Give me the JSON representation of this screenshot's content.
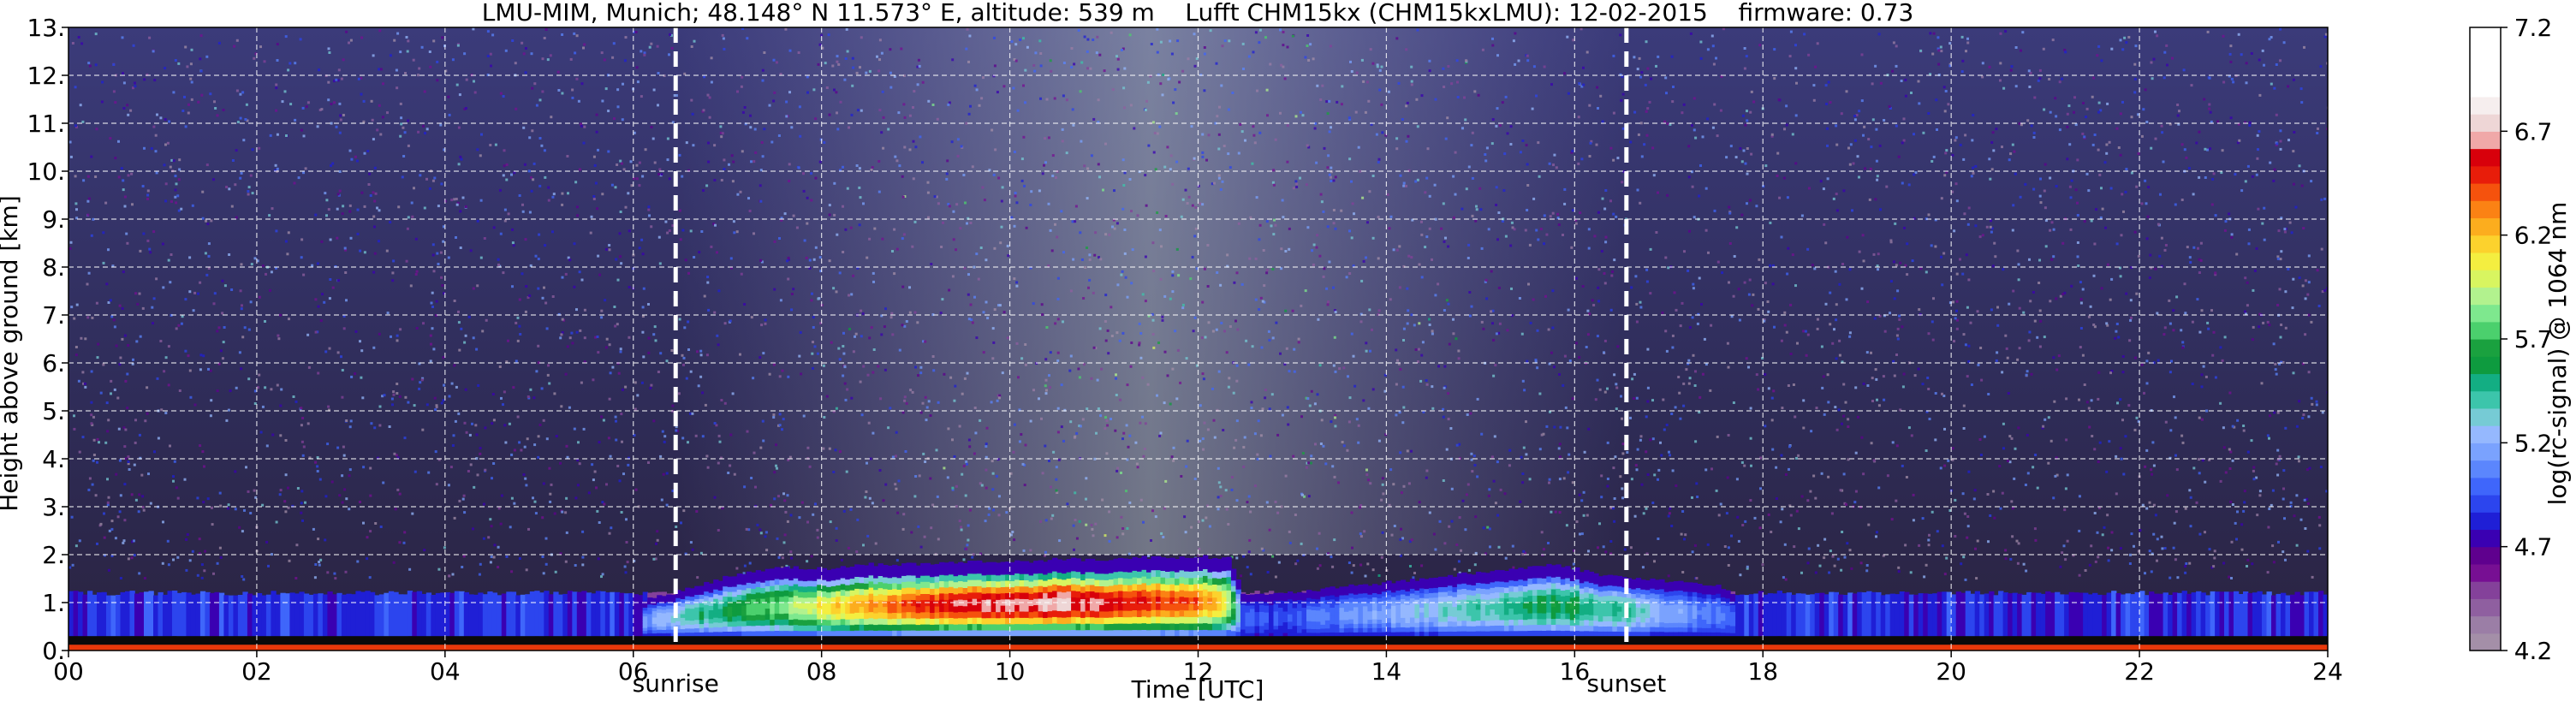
{
  "chart_data": {
    "type": "heatmap",
    "title": "LMU-MIM, Munich; 48.148° N 11.573° E, altitude: 539 m    Lufft CHM15kx (CHM15kxLMU): 12-02-2015    firmware: 0.73",
    "xlabel": "Time [UTC]",
    "ylabel": "Height above ground [km]",
    "xlim": [
      0,
      24
    ],
    "ylim": [
      0,
      13
    ],
    "x_ticks": [
      "00",
      "02",
      "04",
      "06",
      "08",
      "10",
      "12",
      "14",
      "16",
      "18",
      "20",
      "22",
      "24"
    ],
    "y_ticks": [
      "0.",
      "1.",
      "2.",
      "3.",
      "4.",
      "5.",
      "6.",
      "7.",
      "8.",
      "9.",
      "10.",
      "11.",
      "12.",
      "13."
    ],
    "grid": true,
    "annotations": [
      {
        "label": "sunrise",
        "x": 6.45
      },
      {
        "label": "sunset",
        "x": 16.55
      }
    ],
    "colorbar": {
      "label": "log(rc-signal) @ 1064 nm",
      "range": [
        4.2,
        7.2
      ],
      "ticks": [
        "4.2",
        "4.7",
        "5.2",
        "5.7",
        "6.2",
        "6.7",
        "7.2"
      ],
      "colors": [
        "#a48fa8",
        "#9b7ea6",
        "#8f5fa0",
        "#84419a",
        "#770f93",
        "#5f008e",
        "#3a00b2",
        "#1f1fd6",
        "#2c45ee",
        "#3f66fb",
        "#5b86fd",
        "#7aa2fe",
        "#95b8fe",
        "#76cbd5",
        "#3cc5ab",
        "#13ae83",
        "#0e9b3f",
        "#1aa13f",
        "#4bd06d",
        "#7ee88e",
        "#b2f28e",
        "#d8f560",
        "#f4ee40",
        "#fcd22d",
        "#fcad1e",
        "#fb8214",
        "#f5520d",
        "#e81d0a",
        "#d8000b",
        "#f0a8a8",
        "#eed6d6",
        "#f6eeee",
        "#ffffff",
        "#ffffff",
        "#ffffff",
        "#ffffff"
      ]
    },
    "background_layer": {
      "height_km": [
        0.25,
        1.2
      ],
      "value": 4.85,
      "color": "#a06fae"
    },
    "boundary_layer": {
      "x": [
        6.1,
        6.5,
        7.0,
        7.5,
        8.0,
        8.5,
        9.0,
        9.5,
        10.0,
        10.5,
        11.0,
        11.5,
        12.0,
        12.3,
        12.45,
        12.7,
        15.8,
        16.2,
        16.6,
        17.0,
        17.5,
        17.7
      ],
      "top_km": [
        1.05,
        1.25,
        1.55,
        1.75,
        1.7,
        1.8,
        1.8,
        1.85,
        1.85,
        1.9,
        1.9,
        1.95,
        1.95,
        1.95,
        1.2,
        1.15,
        1.8,
        1.6,
        1.5,
        1.45,
        1.35,
        1.1
      ],
      "max_value": [
        5.1,
        5.4,
        5.6,
        5.8,
        6.1,
        6.3,
        6.5,
        6.6,
        6.7,
        6.7,
        6.6,
        6.5,
        6.4,
        6.0,
        5.0,
        4.9,
        5.6,
        5.5,
        5.4,
        5.2,
        5.0,
        4.9
      ]
    },
    "noise_band": {
      "x_range": [
        6.5,
        16.5
      ],
      "peak_x": 12.0,
      "min_value": 4.2,
      "max_value": 6.0
    }
  }
}
